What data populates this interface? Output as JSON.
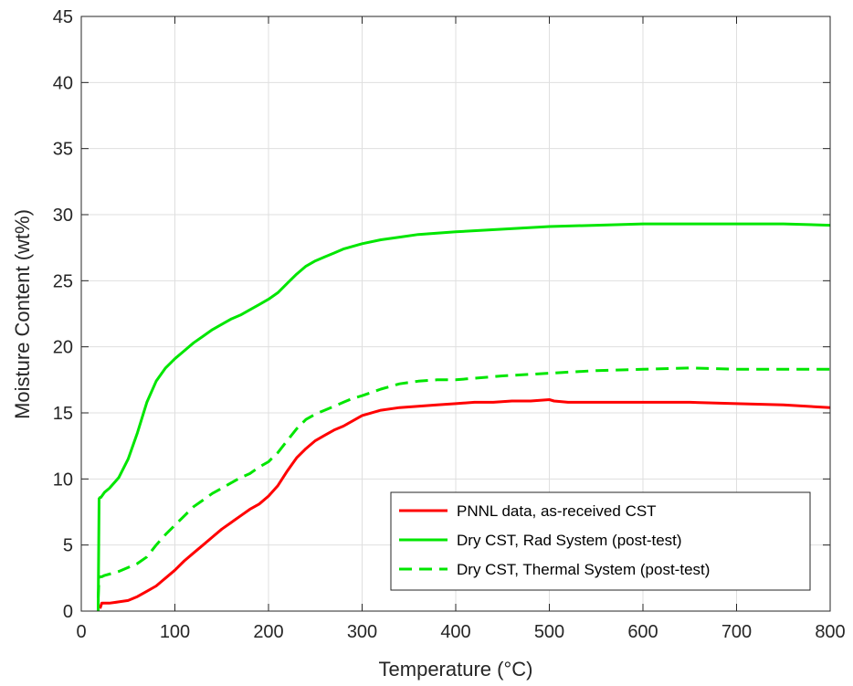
{
  "chart_data": {
    "type": "line",
    "xlabel": "Temperature (°C)",
    "ylabel": "Moisture Content (wt%)",
    "xlim": [
      0,
      800
    ],
    "ylim": [
      0,
      45
    ],
    "x_ticks": [
      "0",
      "100",
      "200",
      "300",
      "400",
      "500",
      "600",
      "700",
      "800"
    ],
    "y_ticks": [
      "0",
      "5",
      "10",
      "15",
      "20",
      "25",
      "30",
      "35",
      "40",
      "45"
    ],
    "grid": true,
    "legend_position": "bottom-right",
    "series": [
      {
        "name": "PNNL data, as-received CST",
        "color": "#ff0000",
        "line_style": "solid",
        "x": [
          20,
          22,
          25,
          30,
          40,
          50,
          60,
          70,
          80,
          90,
          100,
          110,
          120,
          130,
          140,
          150,
          160,
          170,
          180,
          190,
          200,
          210,
          220,
          230,
          240,
          250,
          260,
          270,
          280,
          290,
          300,
          320,
          340,
          360,
          380,
          400,
          420,
          440,
          460,
          480,
          500,
          505,
          520,
          550,
          600,
          650,
          700,
          750,
          800
        ],
        "y": [
          0.2,
          0.6,
          0.6,
          0.6,
          0.7,
          0.8,
          1.1,
          1.5,
          1.9,
          2.5,
          3.1,
          3.8,
          4.4,
          5.0,
          5.6,
          6.2,
          6.7,
          7.2,
          7.7,
          8.1,
          8.7,
          9.5,
          10.6,
          11.6,
          12.3,
          12.9,
          13.3,
          13.7,
          14.0,
          14.4,
          14.8,
          15.2,
          15.4,
          15.5,
          15.6,
          15.7,
          15.8,
          15.8,
          15.9,
          15.9,
          16.0,
          15.9,
          15.8,
          15.8,
          15.8,
          15.8,
          15.7,
          15.6,
          15.4
        ]
      },
      {
        "name": "Dry CST, Rad System (post-test)",
        "color": "#00e600",
        "line_style": "solid",
        "x": [
          18,
          19,
          20,
          21,
          22,
          25,
          30,
          40,
          50,
          60,
          70,
          80,
          90,
          100,
          110,
          120,
          130,
          140,
          150,
          160,
          170,
          180,
          190,
          200,
          210,
          220,
          230,
          240,
          250,
          260,
          270,
          280,
          290,
          300,
          320,
          340,
          360,
          380,
          400,
          450,
          500,
          550,
          600,
          650,
          700,
          750,
          800
        ],
        "y": [
          0.0,
          8.5,
          8.6,
          8.6,
          8.7,
          9.0,
          9.3,
          10.1,
          11.5,
          13.5,
          15.8,
          17.4,
          18.4,
          19.1,
          19.7,
          20.3,
          20.8,
          21.3,
          21.7,
          22.1,
          22.4,
          22.8,
          23.2,
          23.6,
          24.1,
          24.8,
          25.5,
          26.1,
          26.5,
          26.8,
          27.1,
          27.4,
          27.6,
          27.8,
          28.1,
          28.3,
          28.5,
          28.6,
          28.7,
          28.9,
          29.1,
          29.2,
          29.3,
          29.3,
          29.3,
          29.3,
          29.2
        ]
      },
      {
        "name": "Dry CST, Thermal System (post-test)",
        "color": "#00e600",
        "line_style": "dashed",
        "x": [
          18,
          19,
          20,
          22,
          25,
          30,
          40,
          50,
          60,
          70,
          80,
          90,
          100,
          110,
          120,
          130,
          140,
          150,
          160,
          170,
          180,
          190,
          200,
          210,
          220,
          230,
          240,
          250,
          260,
          270,
          280,
          290,
          300,
          320,
          340,
          360,
          380,
          400,
          450,
          500,
          550,
          600,
          650,
          700,
          750,
          800
        ],
        "y": [
          1.0,
          2.5,
          2.6,
          2.6,
          2.7,
          2.8,
          3.0,
          3.3,
          3.6,
          4.1,
          5.0,
          5.8,
          6.5,
          7.2,
          7.9,
          8.4,
          8.9,
          9.3,
          9.7,
          10.1,
          10.4,
          10.9,
          11.3,
          12.0,
          12.9,
          13.8,
          14.5,
          14.9,
          15.2,
          15.5,
          15.8,
          16.1,
          16.3,
          16.8,
          17.2,
          17.4,
          17.5,
          17.5,
          17.8,
          18.0,
          18.2,
          18.3,
          18.4,
          18.3,
          18.3,
          18.3
        ]
      }
    ]
  }
}
